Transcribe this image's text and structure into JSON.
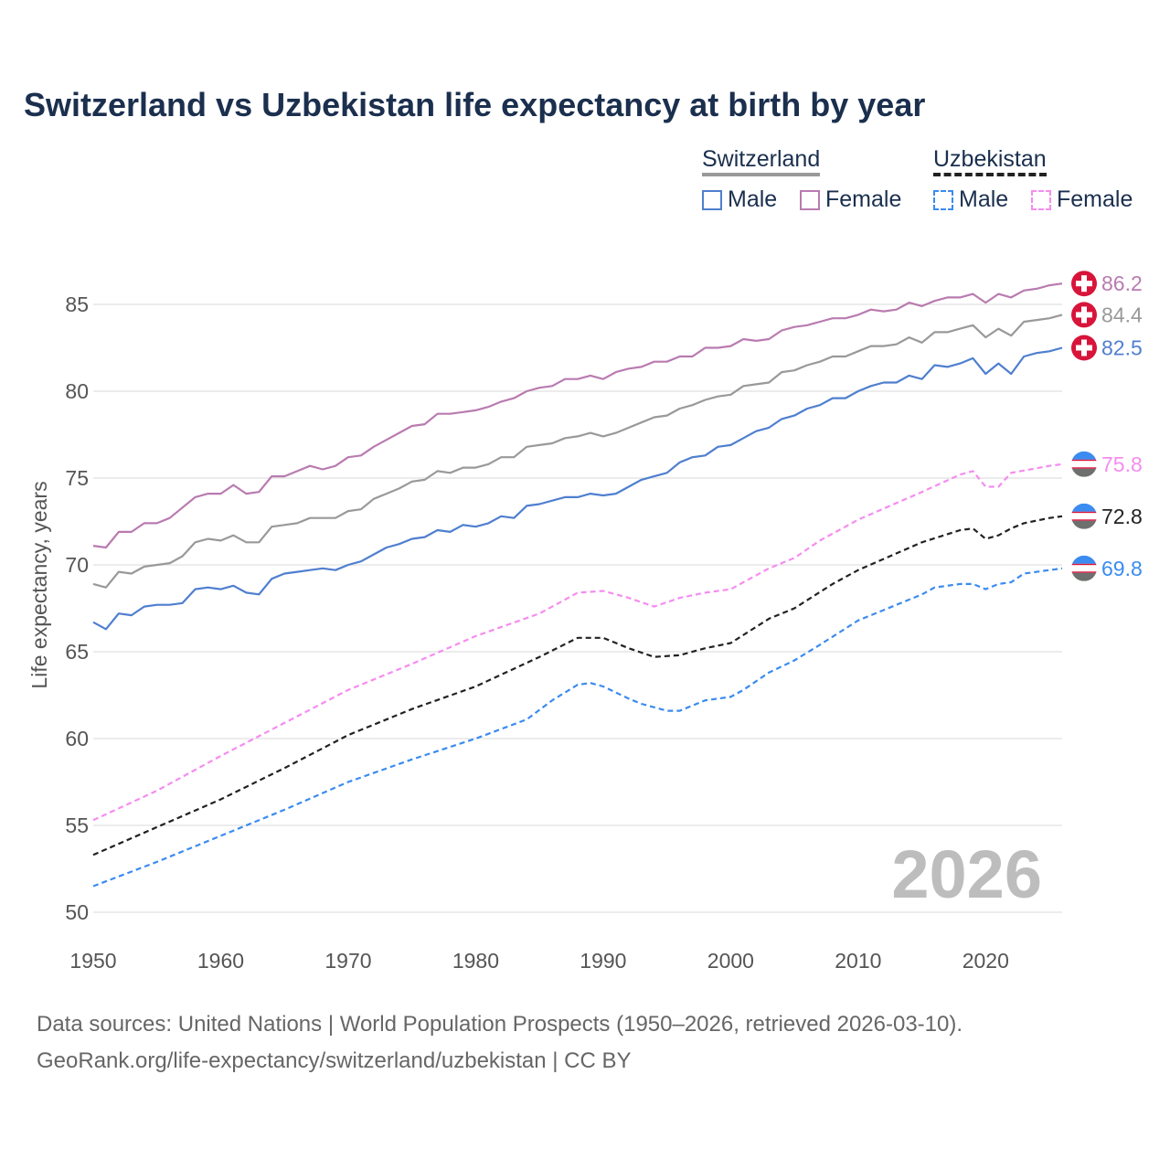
{
  "title": "Switzerland vs Uzbekistan life expectancy at birth by year",
  "legend": {
    "groups": [
      {
        "name": "Switzerland",
        "items": [
          "Male",
          "Female"
        ]
      },
      {
        "name": "Uzbekistan",
        "items": [
          "Male",
          "Female"
        ]
      }
    ]
  },
  "footer": {
    "line1": "Data sources: United Nations | World Population Prospects (1950–2026, retrieved 2026-03-10).",
    "line2": "GeoRank.org/life-expectancy/switzerland/uzbekistan | CC BY"
  },
  "colors": {
    "swiss_male": "#4f7fcf",
    "swiss_female": "#b97bb0",
    "swiss_total": "#999999",
    "uzb_male": "#3b8bf0",
    "uzb_female": "#f58cf0",
    "uzb_total": "#222222",
    "title": "#1b2f4e",
    "swiss_flag": "#d8143a"
  },
  "chart_data": {
    "type": "line",
    "title": "Switzerland vs Uzbekistan life expectancy at birth by year",
    "xlabel": "",
    "ylabel": "Life expectancy, years",
    "xlim": [
      1950,
      2026
    ],
    "ylim": [
      50,
      87
    ],
    "xticks": [
      1950,
      1960,
      1970,
      1980,
      1990,
      2000,
      2010,
      2020
    ],
    "yticks": [
      50,
      55,
      60,
      65,
      70,
      75,
      80,
      85
    ],
    "grid": true,
    "year_label": "2026",
    "series": [
      {
        "name": "Switzerland Female",
        "key": "swiss_female",
        "dashed": false,
        "flag": "switzerland",
        "end_label": "86.2",
        "x_start": 1950,
        "values": [
          71.1,
          71.0,
          71.9,
          71.9,
          72.4,
          72.4,
          72.7,
          73.3,
          73.9,
          74.1,
          74.1,
          74.6,
          74.1,
          74.2,
          75.1,
          75.1,
          75.4,
          75.7,
          75.5,
          75.7,
          76.2,
          76.3,
          76.8,
          77.2,
          77.6,
          78.0,
          78.1,
          78.7,
          78.7,
          78.8,
          78.9,
          79.1,
          79.4,
          79.6,
          80.0,
          80.2,
          80.3,
          80.7,
          80.7,
          80.9,
          80.7,
          81.1,
          81.3,
          81.4,
          81.7,
          81.7,
          82.0,
          82.0,
          82.5,
          82.5,
          82.6,
          83.0,
          82.9,
          83.0,
          83.5,
          83.7,
          83.8,
          84.0,
          84.2,
          84.2,
          84.4,
          84.7,
          84.6,
          84.7,
          85.1,
          84.9,
          85.2,
          85.4,
          85.4,
          85.6,
          85.1,
          85.6,
          85.4,
          85.8,
          85.9,
          86.1,
          86.2
        ]
      },
      {
        "name": "Switzerland Total",
        "key": "swiss_total",
        "dashed": false,
        "flag": "switzerland",
        "end_label": "84.4",
        "x_start": 1950,
        "values": [
          68.9,
          68.7,
          69.6,
          69.5,
          69.9,
          70.0,
          70.1,
          70.5,
          71.3,
          71.5,
          71.4,
          71.7,
          71.3,
          71.3,
          72.2,
          72.3,
          72.4,
          72.7,
          72.7,
          72.7,
          73.1,
          73.2,
          73.8,
          74.1,
          74.4,
          74.8,
          74.9,
          75.4,
          75.3,
          75.6,
          75.6,
          75.8,
          76.2,
          76.2,
          76.8,
          76.9,
          77.0,
          77.3,
          77.4,
          77.6,
          77.4,
          77.6,
          77.9,
          78.2,
          78.5,
          78.6,
          79.0,
          79.2,
          79.5,
          79.7,
          79.8,
          80.3,
          80.4,
          80.5,
          81.1,
          81.2,
          81.5,
          81.7,
          82.0,
          82.0,
          82.3,
          82.6,
          82.6,
          82.7,
          83.1,
          82.8,
          83.4,
          83.4,
          83.6,
          83.8,
          83.1,
          83.6,
          83.2,
          84.0,
          84.1,
          84.2,
          84.4
        ]
      },
      {
        "name": "Switzerland Male",
        "key": "swiss_male",
        "dashed": false,
        "flag": "switzerland",
        "end_label": "82.5",
        "x_start": 1950,
        "values": [
          66.7,
          66.3,
          67.2,
          67.1,
          67.6,
          67.7,
          67.7,
          67.8,
          68.6,
          68.7,
          68.6,
          68.8,
          68.4,
          68.3,
          69.2,
          69.5,
          69.6,
          69.7,
          69.8,
          69.7,
          70.0,
          70.2,
          70.6,
          71.0,
          71.2,
          71.5,
          71.6,
          72.0,
          71.9,
          72.3,
          72.2,
          72.4,
          72.8,
          72.7,
          73.4,
          73.5,
          73.7,
          73.9,
          73.9,
          74.1,
          74.0,
          74.1,
          74.5,
          74.9,
          75.1,
          75.3,
          75.9,
          76.2,
          76.3,
          76.8,
          76.9,
          77.3,
          77.7,
          77.9,
          78.4,
          78.6,
          79.0,
          79.2,
          79.6,
          79.6,
          80.0,
          80.3,
          80.5,
          80.5,
          80.9,
          80.7,
          81.5,
          81.4,
          81.6,
          81.9,
          81.0,
          81.6,
          81.0,
          82.0,
          82.2,
          82.3,
          82.5
        ]
      },
      {
        "name": "Uzbekistan Female",
        "key": "uzb_female",
        "dashed": true,
        "flag": "uzbekistan",
        "end_label": "75.8",
        "x": [
          1950,
          1955,
          1960,
          1965,
          1970,
          1975,
          1980,
          1985,
          1988,
          1990,
          1992,
          1994,
          1996,
          1998,
          2000,
          2003,
          2005,
          2007,
          2010,
          2015,
          2018,
          2019,
          2020,
          2021,
          2022,
          2025,
          2026
        ],
        "values": [
          55.3,
          57.0,
          59.0,
          60.9,
          62.8,
          64.3,
          65.9,
          67.2,
          68.4,
          68.5,
          68.1,
          67.6,
          68.1,
          68.4,
          68.6,
          69.8,
          70.4,
          71.4,
          72.6,
          74.2,
          75.2,
          75.4,
          74.5,
          74.5,
          75.3,
          75.7,
          75.8
        ]
      },
      {
        "name": "Uzbekistan Total",
        "key": "uzb_total",
        "dashed": true,
        "flag": "uzbekistan",
        "end_label": "72.8",
        "x": [
          1950,
          1955,
          1960,
          1965,
          1970,
          1975,
          1980,
          1985,
          1988,
          1990,
          1992,
          1994,
          1996,
          1998,
          2000,
          2003,
          2005,
          2008,
          2010,
          2015,
          2018,
          2019,
          2020,
          2021,
          2022,
          2023,
          2025,
          2026
        ],
        "values": [
          53.3,
          54.9,
          56.5,
          58.3,
          60.2,
          61.7,
          63.0,
          64.7,
          65.8,
          65.8,
          65.2,
          64.7,
          64.8,
          65.2,
          65.5,
          66.9,
          67.5,
          68.9,
          69.7,
          71.3,
          72.0,
          72.1,
          71.5,
          71.7,
          72.1,
          72.4,
          72.7,
          72.8
        ]
      },
      {
        "name": "Uzbekistan Male",
        "key": "uzb_male",
        "dashed": true,
        "flag": "uzbekistan",
        "end_label": "69.8",
        "x": [
          1950,
          1955,
          1960,
          1965,
          1970,
          1975,
          1980,
          1984,
          1986,
          1988,
          1989,
          1990,
          1992,
          1993,
          1995,
          1996,
          1998,
          2000,
          2001,
          2003,
          2005,
          2007,
          2010,
          2013,
          2015,
          2016,
          2018,
          2019,
          2020,
          2021,
          2022,
          2023,
          2025,
          2026
        ],
        "values": [
          51.5,
          52.9,
          54.4,
          55.9,
          57.5,
          58.8,
          60.0,
          61.1,
          62.2,
          63.1,
          63.2,
          63.0,
          62.3,
          62.0,
          61.6,
          61.6,
          62.2,
          62.4,
          62.8,
          63.8,
          64.5,
          65.4,
          66.8,
          67.7,
          68.3,
          68.7,
          68.9,
          68.9,
          68.6,
          68.9,
          69.0,
          69.5,
          69.7,
          69.8
        ]
      }
    ]
  }
}
